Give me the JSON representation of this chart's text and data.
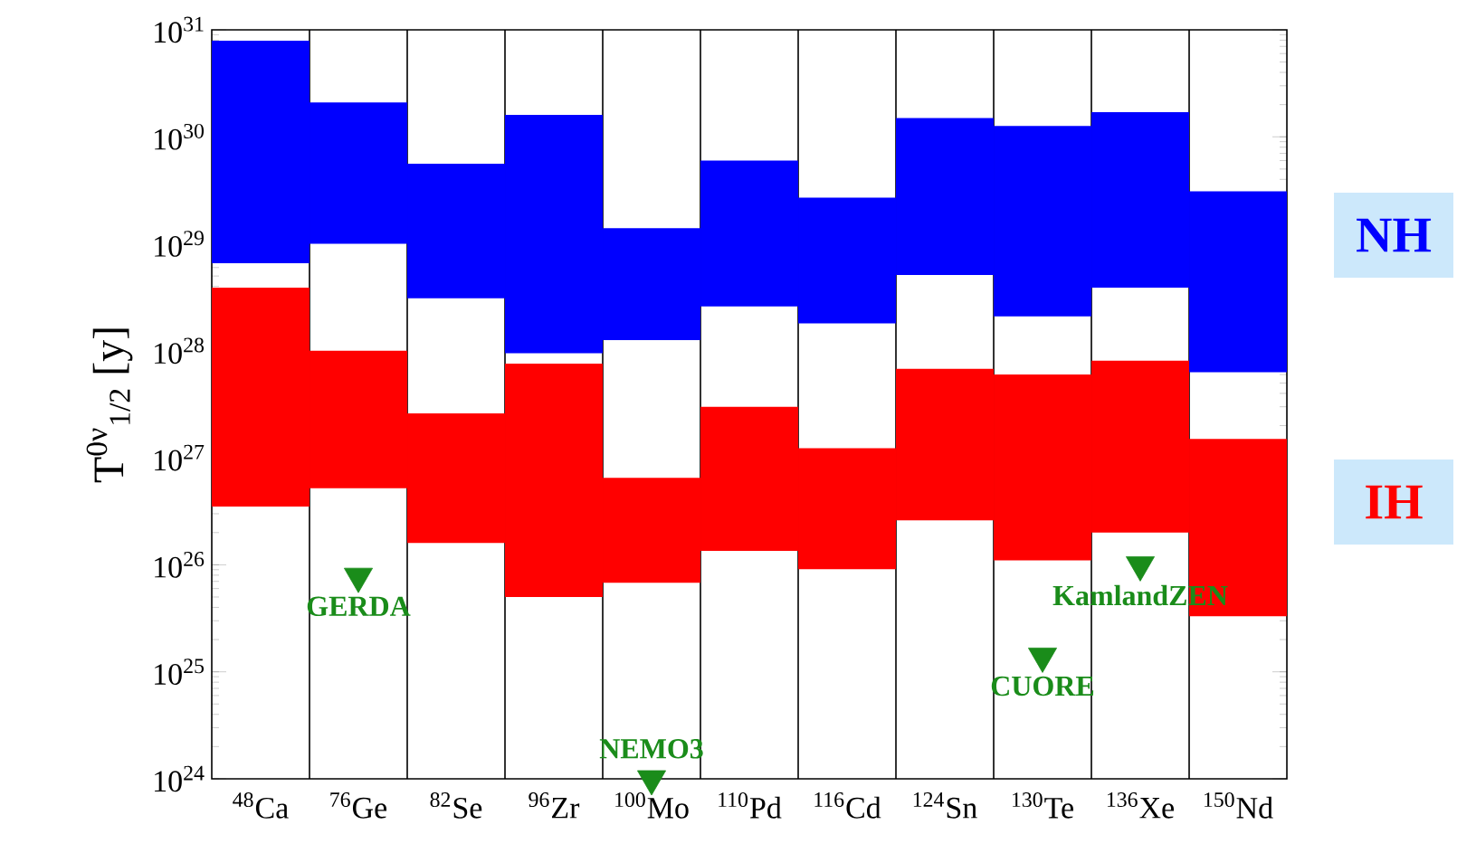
{
  "chart_data": {
    "type": "bar",
    "ylabel": "T$^{0ν}$$_{1/2}$ [y]",
    "categories": [
      "$^{48}$Ca",
      "$^{76}$Ge",
      "$^{82}$Se",
      "$^{96}$Zr",
      "$^{100}$Mo",
      "$^{110}$Pd",
      "$^{116}$Cd",
      "$^{124}$Sn",
      "$^{130}$Te",
      "$^{136}$Xe",
      "$^{150}$Nd"
    ],
    "series": [
      {
        "name": "NH",
        "color": "#0000ff",
        "base": [
          6.6e+28,
          1e+29,
          3.1e+28,
          9.5e+27,
          1.26e+28,
          2.6e+28,
          1.8e+28,
          5.1e+28,
          2.1e+28,
          3.9e+28,
          6.3e+27
        ],
        "values": [
          7.83e+30,
          2e+30,
          5.29e+29,
          1.59e+30,
          1.274e+29,
          5.74e+29,
          2.52e+29,
          1.449e+30,
          1.239e+30,
          1.661e+30,
          3.037e+29
        ]
      },
      {
        "name": "IH",
        "color": "#ff0000",
        "base": [
          3.5e+26,
          5.2e+26,
          1.6e+26,
          5e+25,
          6.8e+25,
          1.35e+26,
          9.1e+25,
          2.6e+26,
          1.1e+26,
          2e+26,
          3.3e+25
        ],
        "values": [
          3.865e+28,
          9.48e+27,
          2.44e+27,
          7.55e+27,
          5.82e+26,
          2.865e+27,
          1.139e+27,
          6.54e+27,
          5.89e+27,
          7.9e+27,
          1.467e+27
        ]
      },
      {
        "name": "GERDA",
        "type": "scatter",
        "marker": "triangle",
        "color": "#1a8c1a",
        "x": [
          "$^{76}$Ge"
        ],
        "values": [
          7.8e+25
        ]
      },
      {
        "name": "KamlandZEN",
        "type": "scatter",
        "marker": "triangle",
        "color": "#1a8c1a",
        "x": [
          "$^{136}$Xe"
        ],
        "values": [
          1e+26
        ]
      },
      {
        "name": "CUORE",
        "type": "scatter",
        "marker": "triangle",
        "color": "#1a8c1a",
        "x": [
          "$^{130}$Te"
        ],
        "values": [
          1.4e+25
        ]
      },
      {
        "name": "NEMO3",
        "type": "scatter",
        "marker": "triangle",
        "color": "#1a8c1a",
        "x": [
          "$^{100}$Mo"
        ],
        "values": [
          1e+24
        ]
      }
    ],
    "log": "y",
    "ylim": [
      1e+24,
      1e+31
    ],
    "yticks": [
      {
        "value": 1e+24,
        "label": "10$^{24}$"
      },
      {
        "value": 1e+25,
        "label": "10$^{25}$"
      },
      {
        "value": 1e+26,
        "label": "10$^{26}$"
      },
      {
        "value": 1e+27,
        "label": "10$^{27}$"
      },
      {
        "value": 1e+28,
        "label": "10$^{28}$"
      },
      {
        "value": 1e+29,
        "label": "10$^{29}$"
      },
      {
        "value": 1e+30,
        "label": "10$^{30}$"
      },
      {
        "value": 1e+31,
        "label": "10$^{31}$"
      }
    ],
    "grid": "x",
    "legend": "right"
  }
}
